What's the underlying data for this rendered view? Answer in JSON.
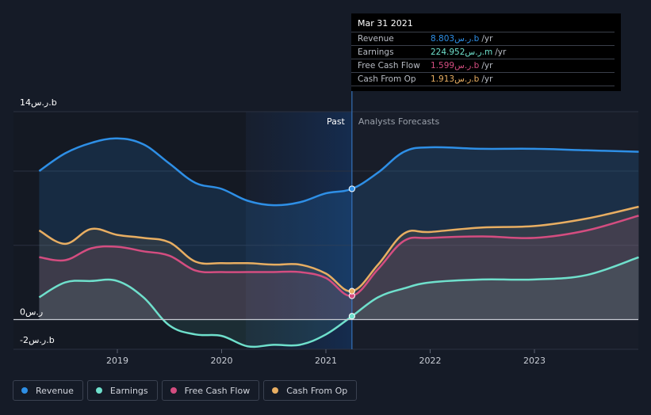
{
  "colors": {
    "revenue": "#2e8fe6",
    "earnings": "#6fe0cc",
    "free_cash_flow": "#d44d80",
    "cash_from_op": "#e8ae62",
    "background": "#151b27"
  },
  "chart_data": {
    "type": "area",
    "y_top_label": "14ر.س.b",
    "y_zero_label": "0ر.س",
    "y_bottom_label": "-2ر.س.b",
    "ylim": [
      -2,
      14
    ],
    "xlim": [
      2018.25,
      2024.0
    ],
    "x_tick_labels": [
      "2019",
      "2020",
      "2021",
      "2022",
      "2023"
    ],
    "x_ticks": [
      2019,
      2020,
      2021,
      2022,
      2023
    ],
    "divider_x": 2021.25,
    "past_label": "Past",
    "forecast_label": "Analysts Forecasts",
    "series": [
      {
        "name": "Revenue",
        "x": [
          2018.25,
          2018.5,
          2018.75,
          2019.0,
          2019.25,
          2019.5,
          2019.75,
          2020.0,
          2020.25,
          2020.5,
          2020.75,
          2021.0,
          2021.25,
          2021.5,
          2021.75,
          2022.0,
          2022.5,
          2023.0,
          2023.5,
          2024.0
        ],
        "values": [
          10.0,
          11.2,
          11.9,
          12.2,
          11.8,
          10.5,
          9.2,
          8.8,
          8.0,
          7.7,
          7.9,
          8.5,
          8.803,
          9.9,
          11.3,
          11.6,
          11.5,
          11.5,
          11.4,
          11.3
        ]
      },
      {
        "name": "Earnings",
        "x": [
          2018.25,
          2018.5,
          2018.75,
          2019.0,
          2019.25,
          2019.5,
          2019.75,
          2020.0,
          2020.25,
          2020.5,
          2020.75,
          2021.0,
          2021.25,
          2021.5,
          2021.75,
          2022.0,
          2022.5,
          2023.0,
          2023.5,
          2024.0
        ],
        "values": [
          1.5,
          2.5,
          2.6,
          2.6,
          1.5,
          -0.4,
          -1.0,
          -1.1,
          -1.8,
          -1.7,
          -1.7,
          -1.0,
          0.225,
          1.5,
          2.1,
          2.5,
          2.7,
          2.7,
          3.0,
          4.2
        ]
      },
      {
        "name": "Free Cash Flow",
        "x": [
          2018.25,
          2018.5,
          2018.75,
          2019.0,
          2019.25,
          2019.5,
          2019.75,
          2020.0,
          2020.25,
          2020.5,
          2020.75,
          2021.0,
          2021.25,
          2021.5,
          2021.75,
          2022.0,
          2022.5,
          2023.0,
          2023.5,
          2024.0
        ],
        "values": [
          4.2,
          4.0,
          4.8,
          4.9,
          4.6,
          4.3,
          3.3,
          3.2,
          3.2,
          3.2,
          3.2,
          2.8,
          1.599,
          3.4,
          5.3,
          5.5,
          5.6,
          5.5,
          6.0,
          7.0
        ]
      },
      {
        "name": "Cash From Op",
        "x": [
          2018.25,
          2018.5,
          2018.75,
          2019.0,
          2019.25,
          2019.5,
          2019.75,
          2020.0,
          2020.25,
          2020.5,
          2020.75,
          2021.0,
          2021.25,
          2021.5,
          2021.75,
          2022.0,
          2022.5,
          2023.0,
          2023.5,
          2024.0
        ],
        "values": [
          6.0,
          5.1,
          6.1,
          5.7,
          5.5,
          5.2,
          3.9,
          3.8,
          3.8,
          3.7,
          3.7,
          3.1,
          1.913,
          3.7,
          5.8,
          5.9,
          6.2,
          6.3,
          6.8,
          7.6
        ]
      }
    ]
  },
  "tooltip": {
    "date": "Mar 31 2021",
    "rows": [
      {
        "label": "Revenue",
        "value": "8.803ر.س.b",
        "unit": "/yr"
      },
      {
        "label": "Earnings",
        "value": "224.952ر.س.m",
        "unit": "/yr"
      },
      {
        "label": "Free Cash Flow",
        "value": "1.599ر.س.b",
        "unit": "/yr"
      },
      {
        "label": "Cash From Op",
        "value": "1.913ر.س.b",
        "unit": "/yr"
      }
    ]
  },
  "legend": [
    {
      "label": "Revenue"
    },
    {
      "label": "Earnings"
    },
    {
      "label": "Free Cash Flow"
    },
    {
      "label": "Cash From Op"
    }
  ]
}
